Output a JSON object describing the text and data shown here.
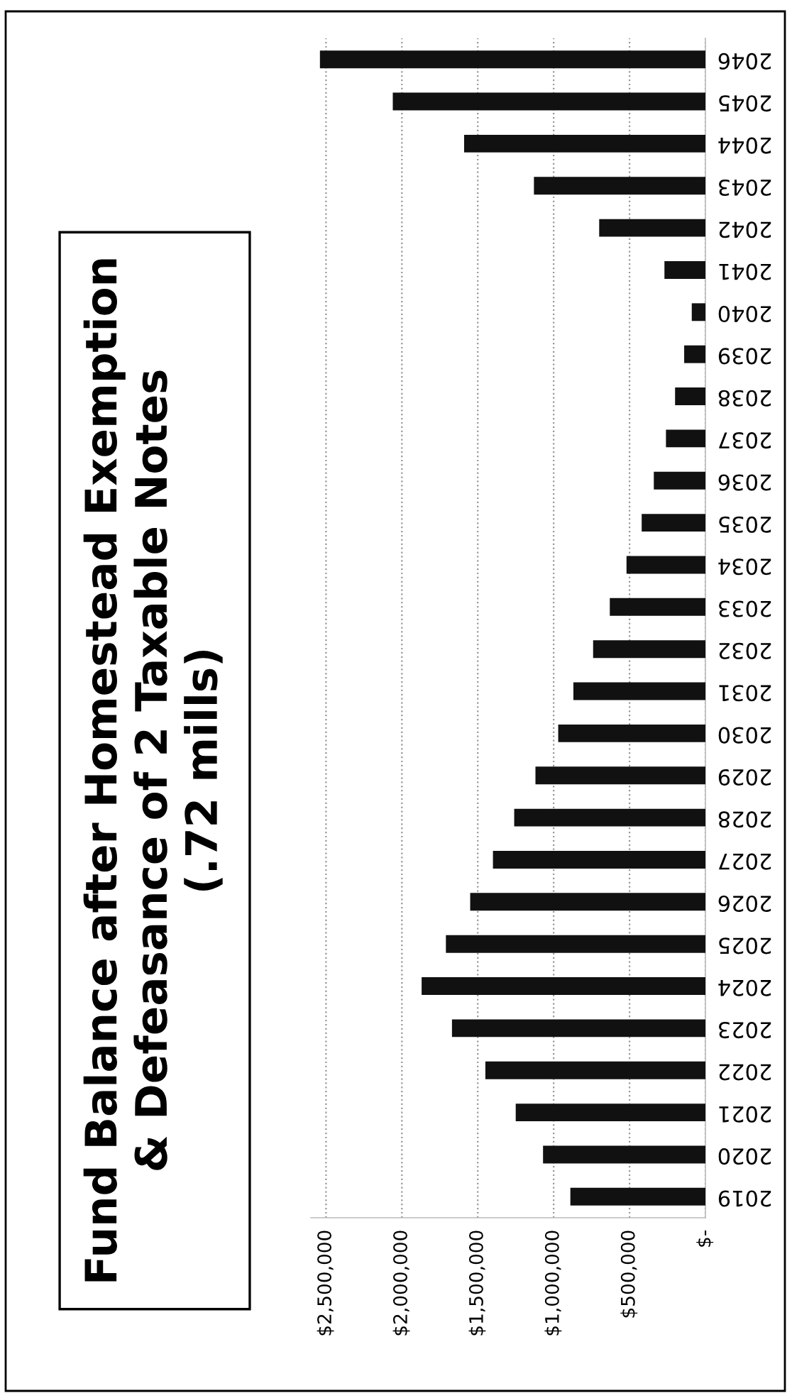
{
  "chart_data": {
    "type": "bar",
    "orientation": "horizontal",
    "title": "Fund Balance after Homestead Exemption\n& Defeasance of 2 Taxable Notes\n(.72 mills)",
    "categories": [
      "2046",
      "2045",
      "2044",
      "2043",
      "2042",
      "2041",
      "2040",
      "2039",
      "2038",
      "2037",
      "2036",
      "2035",
      "2034",
      "2033",
      "2032",
      "2031",
      "2030",
      "2029",
      "2028",
      "2027",
      "2026",
      "2025",
      "2024",
      "2023",
      "2022",
      "2021",
      "2020",
      "2019"
    ],
    "values": [
      2540000,
      2060000,
      1590000,
      1130000,
      700000,
      270000,
      90000,
      140000,
      200000,
      260000,
      340000,
      420000,
      520000,
      630000,
      740000,
      870000,
      970000,
      1120000,
      1260000,
      1400000,
      1550000,
      1710000,
      1870000,
      1670000,
      1450000,
      1250000,
      1070000,
      890000
    ],
    "color": "#111111",
    "xlim": [
      2600000,
      0
    ],
    "xticks": [
      {
        "value": 0,
        "label": "$-"
      },
      {
        "value": 500000,
        "label": "$500,000"
      },
      {
        "value": 1000000,
        "label": "$1,000,000"
      },
      {
        "value": 1500000,
        "label": "$1,500,000"
      },
      {
        "value": 2000000,
        "label": "$2,000,000"
      },
      {
        "value": 2500000,
        "label": "$2,500,000"
      }
    ],
    "grid": "x"
  }
}
